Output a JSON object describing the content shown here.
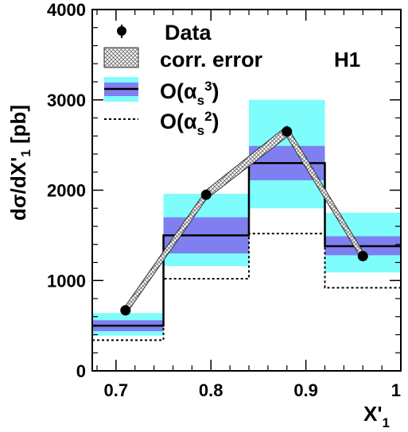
{
  "chart_data": {
    "type": "histogram",
    "experiment_label": "H1",
    "xlabel": {
      "main": "X'",
      "sub": "1"
    },
    "ylabel": "dσ/dX'₁ [pb]",
    "ylabel_parts": {
      "main": "dσ/dX'",
      "sub": "1",
      "unit": "[pb]"
    },
    "xlim": [
      0.675,
      1.0
    ],
    "ylim": [
      0,
      4000
    ],
    "x_ticks": [
      0.7,
      0.8,
      0.9,
      1.0
    ],
    "x_tick_labels": [
      "0.7",
      "0.8",
      "0.9",
      "1"
    ],
    "y_ticks": [
      0,
      1000,
      2000,
      3000,
      4000
    ],
    "y_tick_labels": [
      "0",
      "1000",
      "2000",
      "3000",
      "4000"
    ],
    "bin_edges": [
      0.675,
      0.75,
      0.84,
      0.92,
      1.0
    ],
    "series": [
      {
        "name": "Data",
        "kind": "points",
        "x": [
          0.71,
          0.795,
          0.88,
          0.96
        ],
        "y": [
          670,
          1950,
          2650,
          1270
        ]
      },
      {
        "name": "corr. error",
        "kind": "band",
        "x": [
          0.71,
          0.795,
          0.88,
          0.96
        ],
        "lower": [
          620,
          1900,
          2590,
          1220
        ],
        "upper": [
          720,
          2000,
          2710,
          1320
        ]
      },
      {
        "name": "O(αs³)",
        "kind": "histogram",
        "values": [
          500,
          1500,
          2300,
          1380
        ],
        "inner_band": [
          [
            440,
            560
          ],
          [
            1300,
            1700
          ],
          [
            2110,
            2490
          ],
          [
            1280,
            1490
          ]
        ],
        "outer_band": [
          [
            390,
            640
          ],
          [
            1160,
            1960
          ],
          [
            1800,
            3000
          ],
          [
            1090,
            1750
          ]
        ]
      },
      {
        "name": "O(αs²)",
        "kind": "histogram-dotted",
        "values": [
          340,
          1020,
          1520,
          920
        ]
      }
    ],
    "legend": {
      "placement": "top-left",
      "entries": [
        {
          "id": "data",
          "text": "Data"
        },
        {
          "id": "corr",
          "text": "corr. error"
        },
        {
          "id": "nlo3",
          "text_main": "O(α",
          "text_sub": "s",
          "text_sup": "3",
          "text_close": ")"
        },
        {
          "id": "nlo2",
          "text_main": "O(α",
          "text_sub": "s",
          "text_sup": "2",
          "text_close": ")"
        }
      ]
    },
    "colors": {
      "outer_band": "#7ffcfc",
      "inner_band": "#7f7ff0",
      "line": "#000000",
      "hatch": "#555555"
    }
  }
}
